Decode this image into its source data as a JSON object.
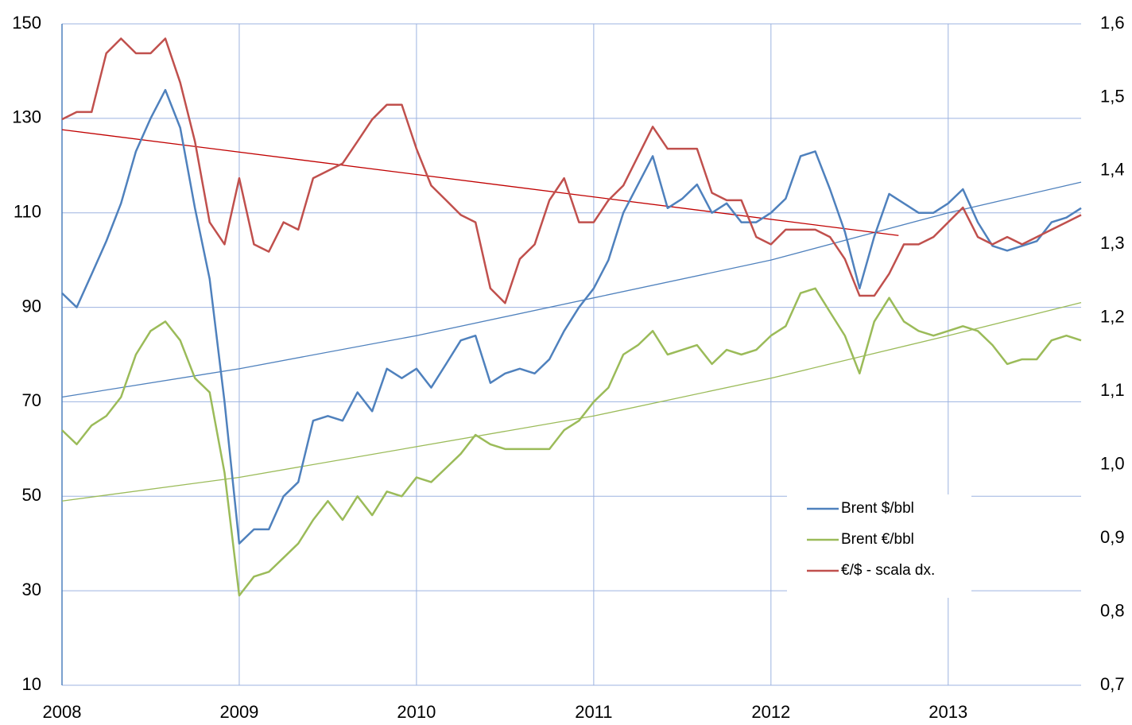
{
  "chart_data": {
    "type": "line",
    "x": [
      2008,
      2008.083,
      2008.167,
      2008.25,
      2008.333,
      2008.417,
      2008.5,
      2008.583,
      2008.667,
      2008.75,
      2008.833,
      2008.917,
      2009,
      2009.083,
      2009.167,
      2009.25,
      2009.333,
      2009.417,
      2009.5,
      2009.583,
      2009.667,
      2009.75,
      2009.833,
      2009.917,
      2010,
      2010.083,
      2010.167,
      2010.25,
      2010.333,
      2010.417,
      2010.5,
      2010.583,
      2010.667,
      2010.75,
      2010.833,
      2010.917,
      2011,
      2011.083,
      2011.167,
      2011.25,
      2011.333,
      2011.417,
      2011.5,
      2011.583,
      2011.667,
      2011.75,
      2011.833,
      2011.917,
      2012,
      2012.083,
      2012.167,
      2012.25,
      2012.333,
      2012.417,
      2012.5,
      2012.583,
      2012.667,
      2012.75,
      2012.833,
      2012.917,
      2013,
      2013.083,
      2013.167,
      2013.25,
      2013.333,
      2013.417,
      2013.5,
      2013.583,
      2013.667,
      2013.75
    ],
    "series": [
      {
        "name": "Brent $/bbl",
        "color": "#4f81bd",
        "values": [
          93,
          90,
          97,
          104,
          112,
          123,
          130,
          136,
          128,
          111,
          96,
          70,
          40,
          43,
          43,
          50,
          53,
          66,
          67,
          66,
          72,
          68,
          77,
          75,
          77,
          73,
          78,
          83,
          84,
          74,
          76,
          77,
          76,
          79,
          85,
          90,
          94,
          100,
          110,
          116,
          122,
          111,
          113,
          116,
          110,
          112,
          108,
          108,
          110,
          113,
          122,
          123,
          115,
          106,
          94,
          105,
          114,
          112,
          110,
          110,
          112,
          115,
          108,
          103,
          102,
          103,
          104,
          108,
          109,
          111
        ]
      },
      {
        "name": "Brent €/bbl",
        "color": "#9bbb59",
        "values": [
          64,
          61,
          65,
          67,
          71,
          80,
          85,
          87,
          83,
          75,
          72,
          55,
          29,
          33,
          34,
          37,
          40,
          45,
          49,
          45,
          50,
          46,
          51,
          50,
          54,
          53,
          56,
          59,
          63,
          61,
          60,
          60,
          60,
          60,
          64,
          66,
          70,
          73,
          80,
          82,
          85,
          80,
          81,
          82,
          78,
          81,
          80,
          81,
          84,
          86,
          93,
          94,
          89,
          84,
          76,
          87,
          92,
          87,
          85,
          84,
          85,
          86,
          85,
          82,
          78,
          79,
          79,
          83,
          84,
          83
        ]
      },
      {
        "name": "€/$ - scala dx.",
        "color": "#c0504d",
        "axis": "y2",
        "values": [
          1.47,
          1.48,
          1.48,
          1.56,
          1.58,
          1.56,
          1.56,
          1.58,
          1.52,
          1.44,
          1.33,
          1.3,
          1.39,
          1.3,
          1.29,
          1.33,
          1.32,
          1.39,
          1.4,
          1.41,
          1.44,
          1.47,
          1.49,
          1.49,
          1.43,
          1.38,
          1.36,
          1.34,
          1.33,
          1.24,
          1.22,
          1.28,
          1.3,
          1.36,
          1.39,
          1.33,
          1.33,
          1.36,
          1.38,
          1.42,
          1.46,
          1.43,
          1.43,
          1.43,
          1.37,
          1.36,
          1.36,
          1.31,
          1.3,
          1.32,
          1.32,
          1.32,
          1.31,
          1.28,
          1.23,
          1.23,
          1.26,
          1.3,
          1.3,
          1.31,
          1.33,
          1.35,
          1.31,
          1.3,
          1.31,
          1.3,
          1.31,
          1.32,
          1.33,
          1.34
        ]
      }
    ],
    "trendlines": [
      {
        "color": "#4f81bd",
        "x": [
          2008,
          2009,
          2010,
          2011,
          2012,
          2013,
          2013.75
        ],
        "values": [
          71,
          77,
          84,
          92,
          100,
          110,
          116.5
        ]
      },
      {
        "color": "#9bbb59",
        "x": [
          2008,
          2009,
          2010,
          2011,
          2012,
          2013,
          2013.75
        ],
        "values": [
          49,
          54,
          60.5,
          67,
          75,
          84,
          91
        ]
      },
      {
        "color": "#c00000",
        "axis": "y2",
        "x": [
          2008,
          2012.72
        ],
        "values": [
          1.456,
          1.312
        ]
      }
    ],
    "xlim": [
      2008,
      2013.75
    ],
    "xticks": [
      2008,
      2009,
      2010,
      2011,
      2012,
      2013
    ],
    "ylim": [
      10,
      150
    ],
    "yticks": [
      10,
      30,
      50,
      70,
      90,
      110,
      130,
      150
    ],
    "y2lim": [
      0.7,
      1.6
    ],
    "y2ticks": [
      {
        "value": 0.7,
        "label": "0,7"
      },
      {
        "value": 0.8,
        "label": "0,8"
      },
      {
        "value": 0.9,
        "label": "0,9"
      },
      {
        "value": 1.0,
        "label": "1,0"
      },
      {
        "value": 1.1,
        "label": "1,1"
      },
      {
        "value": 1.2,
        "label": "1,2"
      },
      {
        "value": 1.3,
        "label": "1,3"
      },
      {
        "value": 1.4,
        "label": "1,4"
      },
      {
        "value": 1.5,
        "label": "1,5"
      },
      {
        "value": 1.6,
        "label": "1,6"
      }
    ],
    "grid": true,
    "grid_color": "#9db3e0",
    "legend": "lower-right"
  }
}
